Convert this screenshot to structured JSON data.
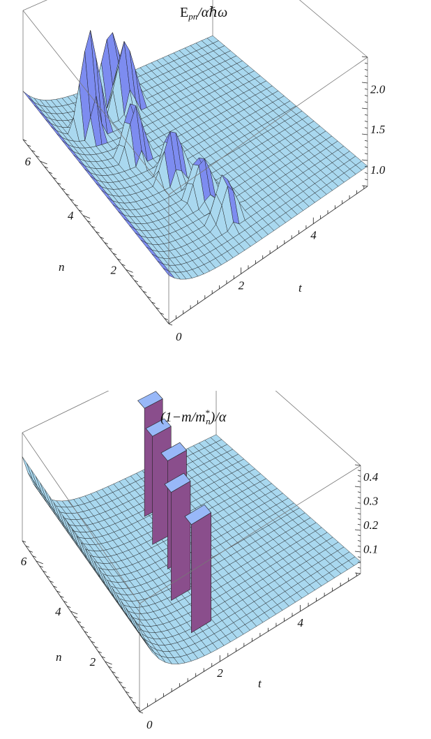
{
  "chart_data": [
    {
      "type": "surface3d",
      "title_main": "E",
      "title_sub": "pn",
      "title_rest": "/αℏω",
      "xlabel": "t",
      "ylabel": "n",
      "x_ticks": [
        "2",
        "4"
      ],
      "y_ticks": [
        "2",
        "4",
        "6"
      ],
      "z_ticks": [
        "1.0",
        "1.5",
        "2.0"
      ],
      "origin_label": "0",
      "xlim": [
        0,
        5.5
      ],
      "ylim": [
        0,
        6.8
      ],
      "zlim": [
        0.8,
        2.4
      ],
      "baseline_z": 1.05,
      "ridge_peak_z": 1.4,
      "peaks": [
        {
          "n": 1.2,
          "t": 2.3,
          "z": 1.75
        },
        {
          "n": 2.2,
          "t": 2.2,
          "z": 1.75
        },
        {
          "n": 3.2,
          "t": 2.0,
          "z": 1.8
        },
        {
          "n": 4.3,
          "t": 1.6,
          "z": 1.95
        },
        {
          "n": 5.5,
          "t": 1.1,
          "z": 2.45
        },
        {
          "n": 5.8,
          "t": 2.3,
          "z": 2.05
        },
        {
          "n": 6.3,
          "t": 2.2,
          "z": 2.0
        }
      ],
      "colors": {
        "surface": "#a9d8ef",
        "peak": "#7d8cf0",
        "mesh": "#000000"
      }
    },
    {
      "type": "surface3d",
      "title": "(1−m/m",
      "title_sup": "*",
      "title_sub": "n",
      "title_rest": ")/α",
      "xlabel": "t",
      "ylabel": "n",
      "x_ticks": [
        "2",
        "4"
      ],
      "y_ticks": [
        "2",
        "4",
        "6"
      ],
      "z_ticks": [
        "0.1",
        "0.2",
        "0.3",
        "0.4"
      ],
      "origin_label": "0",
      "xlim": [
        0,
        5.5
      ],
      "ylim": [
        0,
        6.8
      ],
      "zlim": [
        0,
        0.45
      ],
      "baseline_z": 0.05,
      "walls": [
        {
          "n": 1.0,
          "t": 2.0
        },
        {
          "n": 2.3,
          "t": 2.1
        },
        {
          "n": 3.3,
          "t": 2.5
        },
        {
          "n": 4.3,
          "t": 2.6
        },
        {
          "n": 5.3,
          "t": 2.9
        }
      ],
      "colors": {
        "surface": "#a9d8ef",
        "wall": "#8a4e8c",
        "wall_top": "#98b8f8",
        "mesh": "#000000"
      }
    }
  ]
}
